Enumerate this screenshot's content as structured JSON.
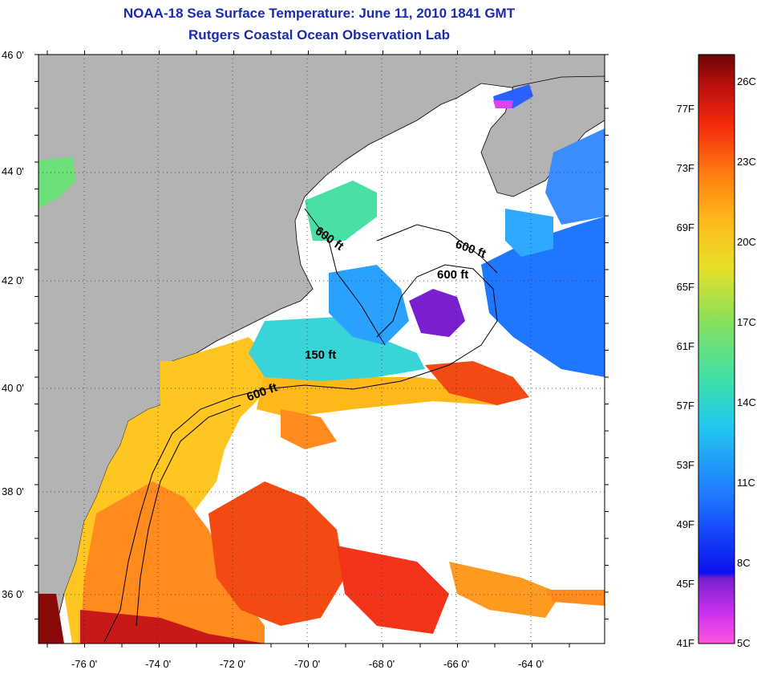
{
  "title": {
    "line1": "NOAA-18 Sea Surface Temperature:  June 11, 2010 1841 GMT",
    "line2": "Rutgers Coastal Ocean Observation Lab"
  },
  "map": {
    "lat_labels": [
      "46 0'",
      "44 0'",
      "42 0'",
      "40 0'",
      "38 0'",
      "36 0'"
    ],
    "lon_labels": [
      "-76 0'",
      "-74 0'",
      "-72 0'",
      "-70 0'",
      "-68 0'",
      "-66 0'",
      "-64 0'"
    ],
    "contour_labels": [
      "600 ft",
      "600 ft",
      "600 ft",
      "150 ft",
      "600 ft"
    ]
  },
  "colorbar": {
    "fahrenheit": [
      "77F",
      "73F",
      "69F",
      "65F",
      "61F",
      "57F",
      "53F",
      "49F",
      "45F",
      "41F"
    ],
    "celsius": [
      "26C",
      "23C",
      "20C",
      "17C",
      "14C",
      "11C",
      "8C",
      "5C"
    ]
  },
  "colors": {
    "title": "#1a2bb0",
    "land": "#b3b3b3"
  }
}
